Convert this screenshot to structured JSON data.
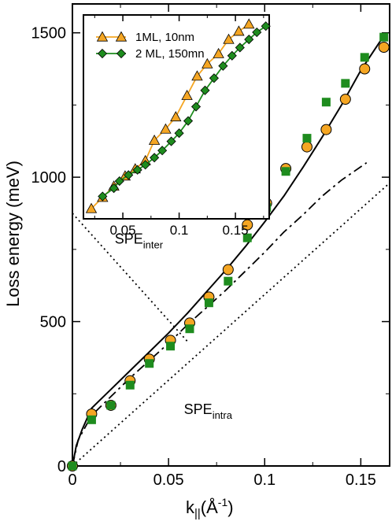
{
  "chart_data": [
    {
      "type": "scatter",
      "xlabel": "k",
      "xlabel_sub": "||",
      "xlabel_unit": "(Å",
      "xlabel_sup": "-1",
      "xlabel_close": ")",
      "ylabel": "Loss energy (meV)",
      "xlim": [
        0,
        0.165
      ],
      "ylim": [
        0,
        1600
      ],
      "x_ticks": [
        0,
        0.05,
        0.1,
        0.15
      ],
      "x_tick_labels": [
        "0",
        "0.05",
        "0.1",
        "0.15"
      ],
      "y_ticks": [
        0,
        500,
        1000,
        1500
      ],
      "y_tick_labels": [
        "0",
        "500",
        "1000",
        "1500"
      ],
      "series": [
        {
          "marker": "circle",
          "color": "#f5a623",
          "x": [
            0,
            0.01,
            0.02,
            0.03,
            0.04,
            0.051,
            0.061,
            0.071,
            0.081,
            0.091,
            0.101,
            0.111,
            0.122,
            0.132,
            0.142,
            0.152,
            0.162
          ],
          "y": [
            0,
            180,
            210,
            295,
            370,
            435,
            495,
            585,
            680,
            835,
            910,
            1030,
            1105,
            1165,
            1270,
            1375,
            1450
          ]
        },
        {
          "marker": "square",
          "color": "#1e8c1e",
          "x": [
            0,
            0.01,
            0.02,
            0.03,
            0.04,
            0.051,
            0.061,
            0.071,
            0.081,
            0.091,
            0.101,
            0.111,
            0.122,
            0.132,
            0.142,
            0.152,
            0.162
          ],
          "y": [
            0,
            160,
            210,
            280,
            355,
            415,
            475,
            565,
            640,
            790,
            895,
            1020,
            1135,
            1260,
            1325,
            1415,
            1485
          ]
        }
      ],
      "lines": [
        {
          "style": "solid",
          "x": [
            0,
            0.002,
            0.005,
            0.01,
            0.02,
            0.03,
            0.04,
            0.05,
            0.06,
            0.07,
            0.08,
            0.09,
            0.1,
            0.11,
            0.12,
            0.13,
            0.14,
            0.15,
            0.16,
            0.163
          ],
          "y": [
            0,
            70,
            125,
            200,
            265,
            330,
            395,
            460,
            530,
            605,
            680,
            760,
            845,
            935,
            1035,
            1140,
            1250,
            1370,
            1470,
            1500
          ]
        },
        {
          "style": "dashdot",
          "x": [
            0,
            0.003,
            0.01,
            0.02,
            0.03,
            0.04,
            0.05,
            0.06,
            0.07,
            0.08,
            0.09,
            0.1,
            0.11,
            0.12,
            0.13,
            0.14,
            0.153
          ],
          "y": [
            0,
            90,
            175,
            240,
            305,
            365,
            425,
            490,
            550,
            610,
            675,
            740,
            810,
            870,
            935,
            990,
            1050
          ]
        },
        {
          "style": "dotted",
          "x": [
            0,
            0.165
          ],
          "y": [
            0,
            980
          ]
        },
        {
          "style": "dotted",
          "x": [
            0,
            0.06
          ],
          "y": [
            875,
            430
          ]
        }
      ],
      "annotations": [
        {
          "text": "SPE",
          "sub": "inter",
          "x": 0.022,
          "y": 770
        },
        {
          "text": "SPE",
          "sub": "intra",
          "x": 0.058,
          "y": 180
        }
      ]
    },
    {
      "type": "line",
      "xlim": [
        0.015,
        0.18
      ],
      "ylim": [
        0,
        1
      ],
      "x_ticks": [
        0.05,
        0.1,
        0.15
      ],
      "x_tick_labels": [
        "0.05",
        "0.1",
        "0.15"
      ],
      "legend_position": "top-left",
      "series": [
        {
          "name": "1ML, 10nm",
          "marker": "triangle",
          "color": "#f5a623",
          "x": [
            0.022,
            0.032,
            0.042,
            0.052,
            0.061,
            0.07,
            0.078,
            0.088,
            0.097,
            0.107,
            0.116,
            0.125,
            0.135,
            0.144,
            0.153,
            0.162
          ],
          "y": [
            0.05,
            0.105,
            0.16,
            0.21,
            0.245,
            0.285,
            0.385,
            0.44,
            0.5,
            0.605,
            0.7,
            0.76,
            0.81,
            0.88,
            0.92,
            0.955
          ]
        },
        {
          "name": "2 ML, 150mn",
          "marker": "diamond",
          "color": "#1e8c1e",
          "x": [
            0.032,
            0.042,
            0.047,
            0.055,
            0.063,
            0.07,
            0.078,
            0.085,
            0.093,
            0.1,
            0.108,
            0.115,
            0.123,
            0.131,
            0.139,
            0.147,
            0.154,
            0.162,
            0.169,
            0.177
          ],
          "y": [
            0.11,
            0.15,
            0.185,
            0.215,
            0.24,
            0.265,
            0.3,
            0.335,
            0.38,
            0.42,
            0.48,
            0.55,
            0.63,
            0.69,
            0.75,
            0.8,
            0.84,
            0.88,
            0.915,
            0.945
          ]
        }
      ]
    }
  ]
}
